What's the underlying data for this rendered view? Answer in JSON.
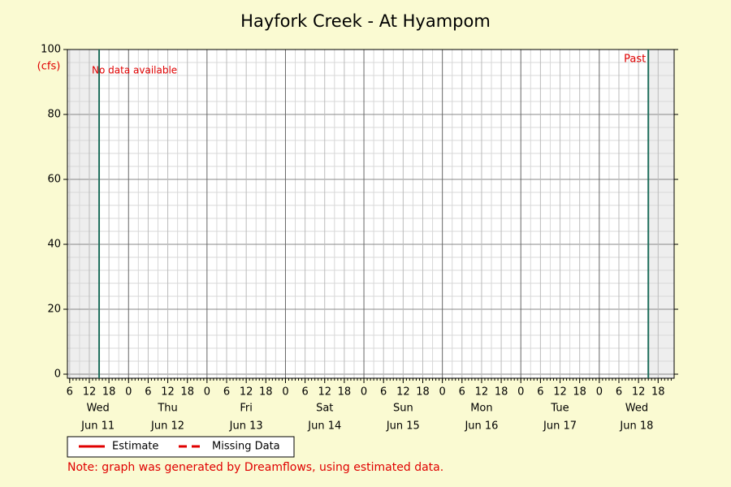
{
  "chart_data": {
    "type": "line",
    "title": "Hayfork Creek - At Hyampom",
    "y_unit": "(cfs)",
    "ylim": [
      -1.25,
      100
    ],
    "yticks": [
      0,
      20,
      40,
      60,
      80,
      100
    ],
    "xlim": [
      5.3,
      190.9
    ],
    "xticks": [
      6,
      12,
      18,
      {
        "value": 24,
        "label": "0"
      },
      {
        "value": 30,
        "label": "6"
      },
      {
        "value": 36,
        "label": "12"
      },
      {
        "value": 42,
        "label": "18"
      },
      {
        "value": 48,
        "label": "0"
      },
      {
        "value": 54,
        "label": "6"
      },
      {
        "value": 60,
        "label": "12"
      },
      {
        "value": 66,
        "label": "18"
      },
      {
        "value": 72,
        "label": "0"
      },
      {
        "value": 78,
        "label": "6"
      },
      {
        "value": 84,
        "label": "12"
      },
      {
        "value": 90,
        "label": "18"
      },
      {
        "value": 96,
        "label": "0"
      },
      {
        "value": 102,
        "label": "6"
      },
      {
        "value": 108,
        "label": "12"
      },
      {
        "value": 114,
        "label": "18"
      },
      {
        "value": 120,
        "label": "0"
      },
      {
        "value": 126,
        "label": "6"
      },
      {
        "value": 132,
        "label": "12"
      },
      {
        "value": 138,
        "label": "18"
      },
      {
        "value": 144,
        "label": "0"
      },
      {
        "value": 150,
        "label": "6"
      },
      {
        "value": 156,
        "label": "12"
      },
      {
        "value": 162,
        "label": "18"
      },
      {
        "value": 168,
        "label": "0"
      },
      {
        "value": 174,
        "label": "6"
      },
      {
        "value": 180,
        "label": "12"
      },
      {
        "value": 186,
        "label": "18"
      }
    ],
    "days": [
      {
        "weekday": "Wed",
        "date": "Jun 11"
      },
      {
        "weekday": "Thu",
        "date": "Jun 12"
      },
      {
        "weekday": "Fri",
        "date": "Jun 13"
      },
      {
        "weekday": "Sat",
        "date": "Jun 14"
      },
      {
        "weekday": "Sun",
        "date": "Jun 15"
      },
      {
        "weekday": "Mon",
        "date": "Jun 16"
      },
      {
        "weekday": "Tue",
        "date": "Jun 17"
      },
      {
        "weekday": "Wed",
        "date": "Jun 18"
      }
    ],
    "data_start": 15,
    "data_end": 183,
    "marker_color": "#1f6e5c",
    "shade_color": "#eeeeee",
    "annotations": {
      "left": "No data available",
      "right": "Past"
    },
    "x": [],
    "series": [
      {
        "name": "Estimate",
        "color": "#e00000",
        "dashed": false,
        "values": []
      },
      {
        "name": "Missing Data",
        "color": "#e00000",
        "dashed": true,
        "values": []
      }
    ],
    "grid": true,
    "note": "Note: graph was generated by Dreamflows, using estimated data."
  }
}
